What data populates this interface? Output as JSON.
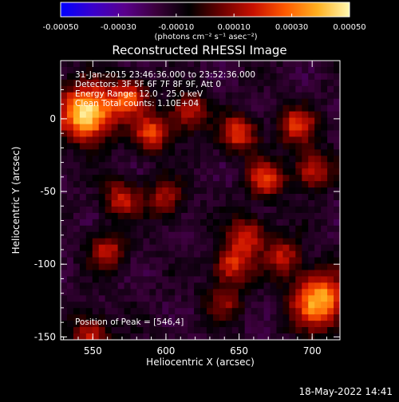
{
  "chart_data": {
    "type": "heatmap",
    "title": "Reconstructed RHESSI Image",
    "xlabel": "Heliocentric X (arcsec)",
    "ylabel": "Heliocentric Y (arcsec)",
    "xlim": [
      528,
      719
    ],
    "ylim": [
      -152,
      40
    ],
    "x_ticks": [
      550,
      600,
      650,
      700
    ],
    "y_ticks": [
      0,
      -50,
      -100,
      -150
    ],
    "colorbar": {
      "range": [
        -0.0005,
        0.0005
      ],
      "ticks": [
        "-0.00050",
        "-0.00030",
        "-0.00010",
        "0.00010",
        "0.00030",
        "0.00050"
      ],
      "unit_label": "(photons cm⁻² s⁻¹ asec⁻²)",
      "colors": [
        "#0000ff",
        "#3a00cc",
        "#5a008c",
        "#3a003a",
        "#000000",
        "#6a0000",
        "#c81000",
        "#ff5a00",
        "#ffb020",
        "#fff8b0"
      ]
    },
    "info_lines": [
      "31-Jan-2015 23:46:36.000 to 23:52:36.000",
      "Detectors: 3F 5F 6F 7F 8F 9F, Att 0",
      "Energy Range: 12.0 - 25.0 keV",
      "Clean    Total counts: 1.10E+04"
    ],
    "peak_label": "Position of Peak = [546,4]",
    "peak": [
      546,
      4
    ],
    "sources": [
      {
        "x": 546,
        "y": 4,
        "value": 0.0005
      },
      {
        "x": 705,
        "y": -125,
        "value": 0.0004
      },
      {
        "x": 575,
        "y": 15,
        "value": 0.00022
      },
      {
        "x": 590,
        "y": -10,
        "value": 0.00022
      },
      {
        "x": 615,
        "y": 5,
        "value": 0.00018
      },
      {
        "x": 650,
        "y": -10,
        "value": 0.00022
      },
      {
        "x": 668,
        "y": -42,
        "value": 0.0002
      },
      {
        "x": 690,
        "y": -5,
        "value": 0.0002
      },
      {
        "x": 700,
        "y": -35,
        "value": 0.00018
      },
      {
        "x": 570,
        "y": -55,
        "value": 0.00016
      },
      {
        "x": 600,
        "y": -55,
        "value": 0.00012
      },
      {
        "x": 645,
        "y": -100,
        "value": 0.0002
      },
      {
        "x": 655,
        "y": -80,
        "value": 0.00018
      },
      {
        "x": 560,
        "y": -90,
        "value": 0.00014
      },
      {
        "x": 548,
        "y": -148,
        "value": 0.00018
      },
      {
        "x": 640,
        "y": -125,
        "value": 8e-05
      },
      {
        "x": 680,
        "y": -95,
        "value": 0.00015
      }
    ]
  },
  "footer": {
    "timestamp": "18-May-2022 14:41"
  }
}
